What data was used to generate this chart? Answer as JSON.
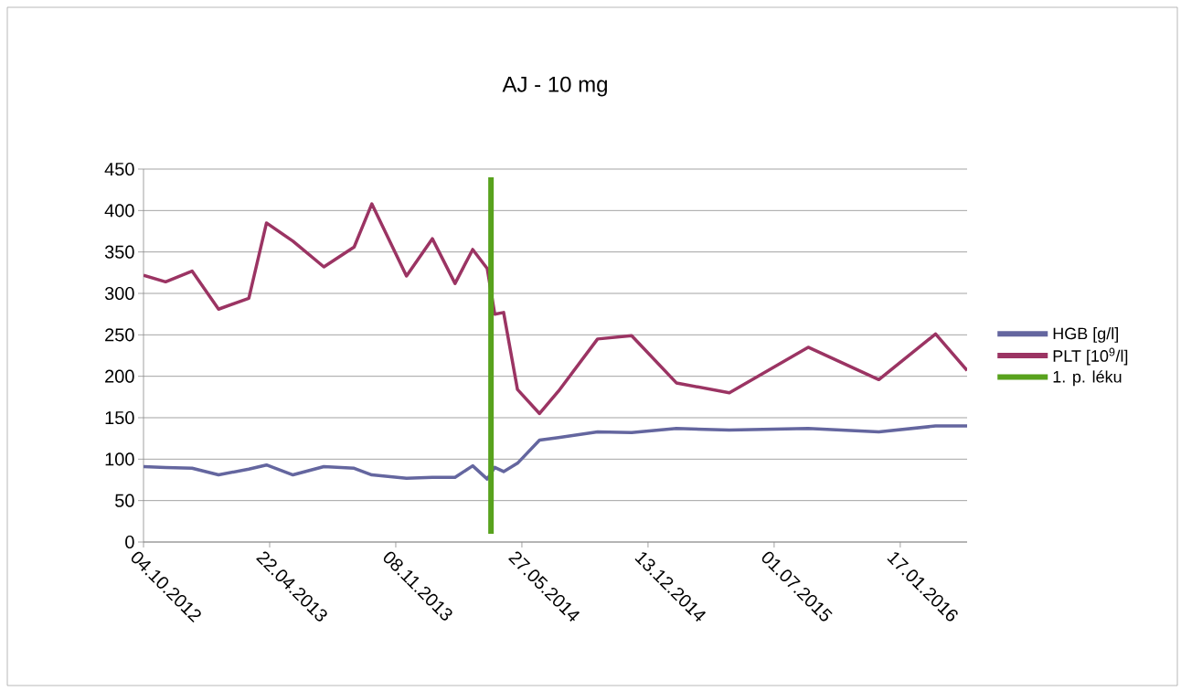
{
  "chart_data": {
    "type": "line",
    "title": "AJ - 10 mg",
    "x": [
      "2012-10-04",
      "2012-11-08",
      "2012-12-20",
      "2013-01-31",
      "2013-03-20",
      "2013-04-17",
      "2013-05-29",
      "2013-07-17",
      "2013-09-03",
      "2013-10-01",
      "2013-11-25",
      "2014-01-05",
      "2014-02-10",
      "2014-03-10",
      "2014-04-02",
      "2014-04-14",
      "2014-04-28",
      "2014-05-20",
      "2014-06-24",
      "2014-07-24",
      "2014-09-24",
      "2014-11-17",
      "2015-01-27",
      "2015-04-21",
      "2015-08-24",
      "2015-12-14",
      "2016-03-13",
      "2016-05-02"
    ],
    "series": [
      {
        "name": "HGB [g/l]",
        "color": "#64669f",
        "values": [
          91,
          90,
          89,
          81,
          88,
          93,
          81,
          91,
          89,
          81,
          77,
          78,
          78,
          92,
          76,
          90,
          85,
          95,
          123,
          126,
          133,
          132,
          137,
          135,
          137,
          133,
          140,
          140
        ]
      },
      {
        "name": "PLT [10$^{9}$/l]",
        "color": "#9b3463",
        "values": [
          322,
          314,
          327,
          281,
          294,
          385,
          363,
          332,
          356,
          408,
          321,
          366,
          312,
          353,
          330,
          275,
          277,
          184,
          155,
          182,
          245,
          249,
          192,
          180,
          235,
          196,
          251,
          207
        ]
      },
      {
        "name": "1. p. léku",
        "color": "#58a21d",
        "x": [
          "2014-04-08",
          "2014-04-08"
        ],
        "values": [
          10,
          440
        ]
      }
    ],
    "xlim": [
      "2012-10-04",
      "2016-05-02"
    ],
    "xticks": [
      {
        "value": "2012-10-04",
        "label": "04.10.2012"
      },
      {
        "value": "2013-04-22",
        "label": "22.04.2013"
      },
      {
        "value": "2013-11-08",
        "label": "08.11.2013"
      },
      {
        "value": "2014-05-27",
        "label": "27.05.2014"
      },
      {
        "value": "2014-12-13",
        "label": "13.12.2014"
      },
      {
        "value": "2015-07-01",
        "label": "01.07.2015"
      },
      {
        "value": "2016-01-17",
        "label": "17.01.2016"
      }
    ],
    "ylim": [
      0,
      450
    ],
    "yticks": [
      0,
      50,
      100,
      150,
      200,
      250,
      300,
      350,
      400,
      450
    ],
    "grid": "y",
    "legend": "right",
    "marker": "none",
    "line_style": "solid"
  }
}
